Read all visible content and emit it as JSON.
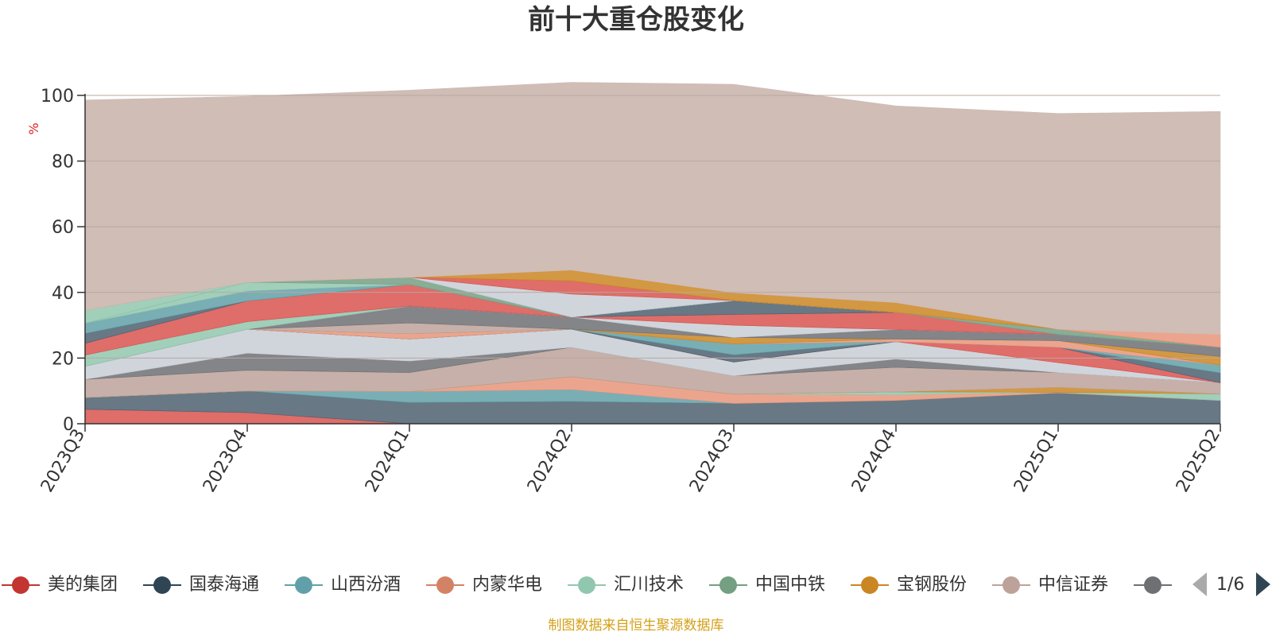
{
  "chart_data": {
    "type": "area",
    "title": "前十大重仓股变化",
    "ylabel": "%",
    "ylim": [
      0,
      100
    ],
    "yticks": [
      0,
      20,
      40,
      60,
      80,
      100
    ],
    "grid": true,
    "legend_position": "bottom",
    "categories": [
      "2023Q3",
      "2023Q4",
      "2024Q1",
      "2024Q2",
      "2024Q3",
      "2024Q4",
      "2025Q1",
      "2025Q2"
    ],
    "series": [
      {
        "name": "美的集团",
        "color": "#d9534f",
        "values": [
          4.4,
          3.4,
          0,
          0,
          0,
          0,
          0,
          0
        ]
      },
      {
        "name": "国泰海通",
        "color": "#4d6070",
        "values": [
          3.6,
          6.6,
          6.5,
          6.8,
          6.2,
          7.1,
          9.4,
          7.1
        ]
      },
      {
        "name": "山西汾酒",
        "color": "#61a0a8",
        "values": [
          0,
          0,
          3.3,
          3.6,
          0,
          0,
          0,
          0
        ]
      },
      {
        "name": "内蒙华电",
        "color": "#e8957a",
        "values": [
          0,
          0,
          0,
          3.9,
          2.8,
          1.7,
          0.2,
          0
        ]
      },
      {
        "name": "汇川技术",
        "color": "#91c7ae",
        "values": [
          0,
          0,
          0,
          0,
          0,
          0.9,
          0,
          2.0
        ]
      },
      {
        "name": "中国中铁",
        "color": "#749f83",
        "values": [
          0,
          0,
          0,
          0,
          0,
          0,
          0,
          0
        ]
      },
      {
        "name": "宝钢股份",
        "color": "#ca8622",
        "values": [
          0,
          0,
          0,
          0,
          0,
          0,
          1.5,
          0
        ]
      },
      {
        "name": "中信证券",
        "color": "#bda29a",
        "values": [
          5.5,
          6.3,
          5.8,
          9.0,
          5.6,
          7.5,
          4.5,
          3.4
        ]
      },
      {
        "name": "",
        "color": "#6e7074",
        "values": [
          0,
          5.2,
          3.5,
          0,
          0,
          2.5,
          0,
          0
        ]
      },
      {
        "name": "",
        "color": "#c8ced6",
        "values": [
          4.0,
          7.3,
          6.7,
          5.5,
          4.2,
          5.3,
          3.0,
          0
        ]
      },
      {
        "name": "",
        "color": "#d9534f",
        "values": [
          0,
          0,
          0,
          0,
          0,
          0,
          4.7,
          0
        ]
      },
      {
        "name": "",
        "color": "#4d6070",
        "values": [
          0,
          0,
          0,
          0,
          2.2,
          0,
          0,
          3.0
        ]
      },
      {
        "name": "",
        "color": "#61a0a8",
        "values": [
          0,
          0,
          0,
          0,
          3.3,
          0,
          0,
          2.4
        ]
      },
      {
        "name": "",
        "color": "#e8957a",
        "values": [
          0,
          0,
          1.6,
          0,
          0,
          0.8,
          2.0,
          0
        ]
      },
      {
        "name": "",
        "color": "#ca8622",
        "values": [
          0,
          0,
          0,
          0,
          2.0,
          0,
          0,
          2.6
        ]
      },
      {
        "name": "",
        "color": "#bda29a",
        "values": [
          0,
          0,
          3.3,
          0,
          0,
          0,
          0,
          0
        ]
      },
      {
        "name": "",
        "color": "#6e7074",
        "values": [
          0,
          0,
          5.1,
          3.7,
          0,
          2.9,
          1.9,
          2.8
        ]
      },
      {
        "name": "",
        "color": "#c8ced6",
        "values": [
          0,
          0,
          0,
          0,
          3.7,
          0,
          0,
          0
        ]
      },
      {
        "name": "",
        "color": "#91c7ae",
        "values": [
          3.4,
          2.3,
          0,
          0,
          0,
          0,
          0,
          0
        ]
      },
      {
        "name": "",
        "color": "#d9534f",
        "values": [
          3.6,
          6.3,
          6.6,
          0,
          3.3,
          5.2,
          0,
          0
        ]
      },
      {
        "name": "",
        "color": "#4d6070",
        "values": [
          3.0,
          0,
          0,
          0,
          4.2,
          0,
          0,
          0
        ]
      },
      {
        "name": "",
        "color": "#61a0a8",
        "values": [
          3.1,
          3.0,
          0,
          0,
          0,
          0,
          0,
          0
        ]
      },
      {
        "name": "",
        "color": "#91c7ae",
        "values": [
          0,
          2.7,
          0,
          0,
          0,
          0,
          0,
          0
        ]
      },
      {
        "name": "",
        "color": "#749f83",
        "values": [
          0,
          0,
          2.2,
          0,
          0,
          0,
          1.6,
          0
        ]
      },
      {
        "name": "",
        "color": "#91c7ae",
        "values": [
          4.0,
          0,
          0,
          0,
          0,
          0,
          0,
          0
        ]
      },
      {
        "name": "",
        "color": "#c8ced6",
        "values": [
          0,
          0,
          0,
          7.0,
          0,
          0,
          0,
          0
        ]
      },
      {
        "name": "",
        "color": "#d9534f",
        "values": [
          0,
          0,
          0,
          4.0,
          0,
          0,
          0,
          0
        ]
      },
      {
        "name": "",
        "color": "#ca8622",
        "values": [
          0,
          0,
          0,
          3.3,
          2.4,
          3.0,
          0,
          0
        ]
      },
      {
        "name": "",
        "color": "#e8957a",
        "values": [
          0,
          0,
          0,
          0,
          0,
          0,
          0,
          3.9
        ]
      },
      {
        "name": "",
        "color": "#cfbdb6",
        "values": [
          64,
          56.6,
          57.0,
          57.2,
          63.5,
          59.9,
          65.7,
          67.9
        ]
      }
    ]
  },
  "legend": {
    "items": [
      {
        "label": "美的集团",
        "color": "#c23531"
      },
      {
        "label": "国泰海通",
        "color": "#2f4554"
      },
      {
        "label": "山西汾酒",
        "color": "#61a0a8"
      },
      {
        "label": "内蒙华电",
        "color": "#d48265"
      },
      {
        "label": "汇川技术",
        "color": "#91c7ae"
      },
      {
        "label": "中国中铁",
        "color": "#749f83"
      },
      {
        "label": "宝钢股份",
        "color": "#ca8622"
      },
      {
        "label": "中信证券",
        "color": "#bda29a"
      },
      {
        "label": "》",
        "color": "#6e7074"
      }
    ],
    "pager_text": "1/6"
  },
  "source_note": "制图数据来自恒生聚源数据库"
}
